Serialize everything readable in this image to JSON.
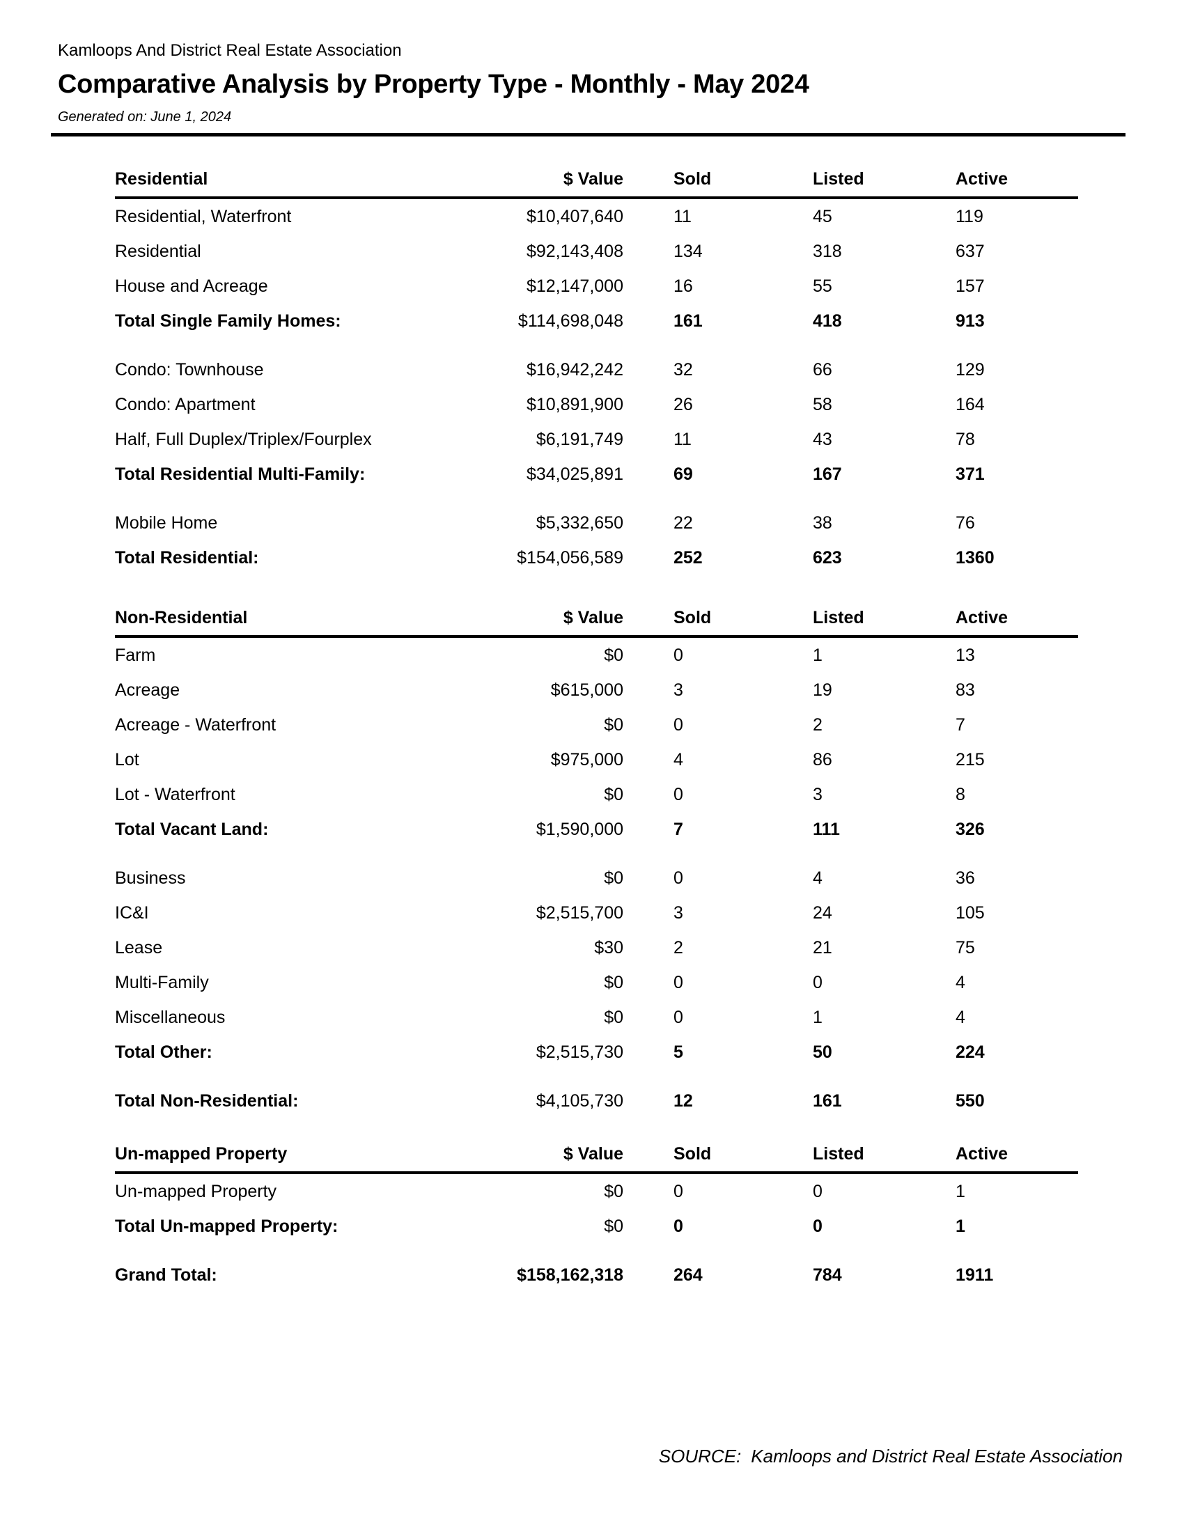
{
  "header": {
    "organization": "Kamloops And District Real Estate Association",
    "title": "Comparative Analysis by Property Type - Monthly - May 2024",
    "generated_on": "Generated on: June 1, 2024"
  },
  "columns": {
    "value": "$ Value",
    "sold": "Sold",
    "listed": "Listed",
    "active": "Active"
  },
  "sections": [
    {
      "name": "Residential",
      "groups": [
        {
          "rows": [
            {
              "label": "Residential, Waterfront",
              "value": "$10,407,640",
              "sold": "11",
              "listed": "45",
              "active": "119",
              "bold": false
            },
            {
              "label": "Residential",
              "value": "$92,143,408",
              "sold": "134",
              "listed": "318",
              "active": "637",
              "bold": false
            },
            {
              "label": "House and Acreage",
              "value": "$12,147,000",
              "sold": "16",
              "listed": "55",
              "active": "157",
              "bold": false
            },
            {
              "label": "Total Single Family Homes:",
              "value": "$114,698,048",
              "sold": "161",
              "listed": "418",
              "active": "913",
              "bold": true
            }
          ]
        },
        {
          "rows": [
            {
              "label": "Condo: Townhouse",
              "value": "$16,942,242",
              "sold": "32",
              "listed": "66",
              "active": "129",
              "bold": false
            },
            {
              "label": "Condo: Apartment",
              "value": "$10,891,900",
              "sold": "26",
              "listed": "58",
              "active": "164",
              "bold": false
            },
            {
              "label": "Half, Full Duplex/Triplex/Fourplex",
              "value": "$6,191,749",
              "sold": "11",
              "listed": "43",
              "active": "78",
              "bold": false
            },
            {
              "label": "Total Residential Multi-Family:",
              "value": "$34,025,891",
              "sold": "69",
              "listed": "167",
              "active": "371",
              "bold": true
            }
          ]
        },
        {
          "rows": [
            {
              "label": "Mobile Home",
              "value": "$5,332,650",
              "sold": "22",
              "listed": "38",
              "active": "76",
              "bold": false
            },
            {
              "label": "Total Residential:",
              "value": "$154,056,589",
              "sold": "252",
              "listed": "623",
              "active": "1360",
              "bold": true
            }
          ]
        }
      ]
    },
    {
      "name": "Non-Residential",
      "groups": [
        {
          "rows": [
            {
              "label": "Farm",
              "value": "$0",
              "sold": "0",
              "listed": "1",
              "active": "13",
              "bold": false
            },
            {
              "label": "Acreage",
              "value": "$615,000",
              "sold": "3",
              "listed": "19",
              "active": "83",
              "bold": false
            },
            {
              "label": "Acreage - Waterfront",
              "value": "$0",
              "sold": "0",
              "listed": "2",
              "active": "7",
              "bold": false
            },
            {
              "label": "Lot",
              "value": "$975,000",
              "sold": "4",
              "listed": "86",
              "active": "215",
              "bold": false
            },
            {
              "label": "Lot - Waterfront",
              "value": "$0",
              "sold": "0",
              "listed": "3",
              "active": "8",
              "bold": false
            },
            {
              "label": "Total Vacant Land:",
              "value": "$1,590,000",
              "sold": "7",
              "listed": "111",
              "active": "326",
              "bold": true
            }
          ]
        },
        {
          "rows": [
            {
              "label": "Business",
              "value": "$0",
              "sold": "0",
              "listed": "4",
              "active": "36",
              "bold": false
            },
            {
              "label": "IC&I",
              "value": "$2,515,700",
              "sold": "3",
              "listed": "24",
              "active": "105",
              "bold": false
            },
            {
              "label": "Lease",
              "value": "$30",
              "sold": "2",
              "listed": "21",
              "active": "75",
              "bold": false
            },
            {
              "label": "Multi-Family",
              "value": "$0",
              "sold": "0",
              "listed": "0",
              "active": "4",
              "bold": false
            },
            {
              "label": "Miscellaneous",
              "value": "$0",
              "sold": "0",
              "listed": "1",
              "active": "4",
              "bold": false
            },
            {
              "label": "Total Other:",
              "value": "$2,515,730",
              "sold": "5",
              "listed": "50",
              "active": "224",
              "bold": true
            }
          ]
        },
        {
          "rows": [
            {
              "label": "Total Non-Residential:",
              "value": "$4,105,730",
              "sold": "12",
              "listed": "161",
              "active": "550",
              "bold": true
            }
          ]
        }
      ]
    },
    {
      "name": "Un-mapped Property",
      "groups": [
        {
          "rows": [
            {
              "label": "Un-mapped Property",
              "value": "$0",
              "sold": "0",
              "listed": "0",
              "active": "1",
              "bold": false
            },
            {
              "label": "Total Un-mapped Property:",
              "value": "$0",
              "sold": "0",
              "listed": "0",
              "active": "1",
              "bold": true
            }
          ]
        },
        {
          "rows": [
            {
              "label": "Grand Total:",
              "value": "$158,162,318",
              "sold": "264",
              "listed": "784",
              "active": "1911",
              "bold": true,
              "value_bold": true
            }
          ]
        }
      ]
    }
  ],
  "footer": {
    "source_label": "SOURCE:",
    "source_value": "Kamloops and District Real Estate Association"
  }
}
